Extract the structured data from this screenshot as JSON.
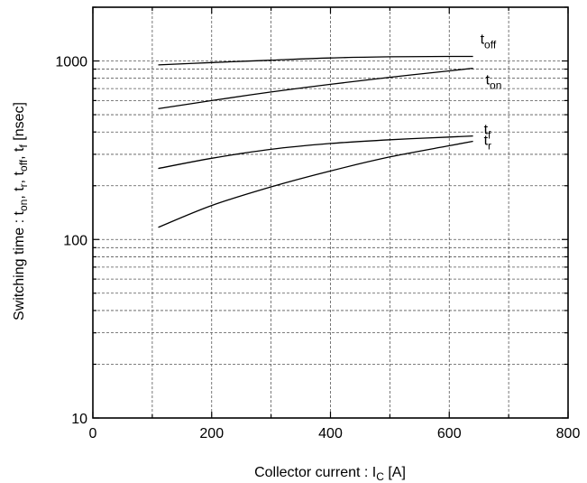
{
  "chart_data": {
    "type": "line",
    "title": "",
    "xlabel": {
      "main": "Collector current : I",
      "sub": "C",
      "unit": " [A]"
    },
    "ylabel": {
      "parts": [
        {
          "t": "Switching time : t",
          "sub": false
        },
        {
          "t": "on",
          "sub": true
        },
        {
          "t": ", t",
          "sub": false
        },
        {
          "t": "r",
          "sub": true
        },
        {
          "t": ", t",
          "sub": false
        },
        {
          "t": "off",
          "sub": true
        },
        {
          "t": ", t",
          "sub": false
        },
        {
          "t": "f",
          "sub": true
        },
        {
          "t": " [nsec]",
          "sub": false
        }
      ]
    },
    "xlim": [
      0,
      800
    ],
    "ylim": [
      10,
      2000
    ],
    "yscale": "log",
    "grid": true,
    "xticks": [
      0,
      200,
      400,
      600,
      800
    ],
    "xtick_labels": [
      "0",
      "200",
      "400",
      "600",
      "800"
    ],
    "yticks": [
      10,
      100,
      1000
    ],
    "ytick_labels": [
      "10",
      "100",
      "1000"
    ],
    "series": [
      {
        "name": "t_off",
        "label": {
          "main": "t",
          "sub": "off"
        },
        "x": [
          110,
          200,
          300,
          400,
          500,
          600,
          640
        ],
        "y": [
          950,
          980,
          1010,
          1040,
          1055,
          1060,
          1060
        ]
      },
      {
        "name": "t_on",
        "label": {
          "main": "t",
          "sub": "on"
        },
        "x": [
          110,
          200,
          300,
          400,
          500,
          600,
          640
        ],
        "y": [
          540,
          600,
          670,
          740,
          810,
          880,
          910
        ]
      },
      {
        "name": "t_f",
        "label": {
          "main": "t",
          "sub": "f"
        },
        "x": [
          110,
          200,
          300,
          400,
          500,
          600,
          640
        ],
        "y": [
          250,
          285,
          320,
          345,
          362,
          375,
          380
        ]
      },
      {
        "name": "t_r",
        "label": {
          "main": "t",
          "sub": "r"
        },
        "x": [
          110,
          200,
          300,
          400,
          500,
          600,
          640
        ],
        "y": [
          117,
          155,
          197,
          242,
          290,
          335,
          355
        ]
      }
    ]
  }
}
